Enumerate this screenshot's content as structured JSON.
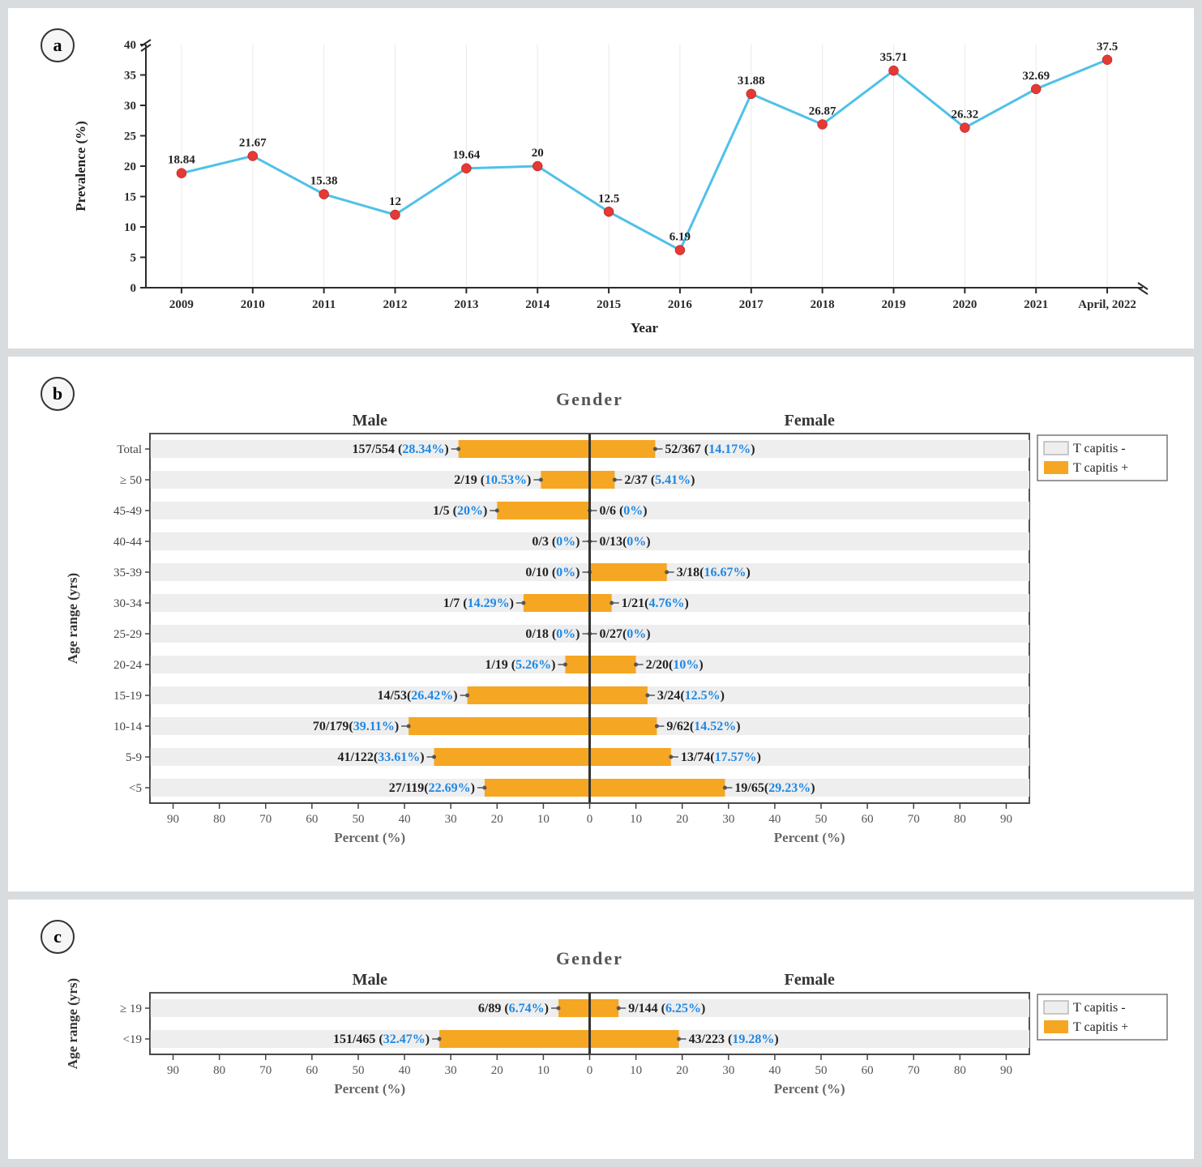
{
  "panel_a": {
    "badge": "a",
    "type": "line",
    "ylabel": "Prevalence (%)",
    "xlabel": "Year",
    "ylim": [
      0,
      40
    ],
    "ytick_step": 5,
    "categories": [
      "2009",
      "2010",
      "2011",
      "2012",
      "2013",
      "2014",
      "2015",
      "2016",
      "2017",
      "2018",
      "2019",
      "2020",
      "2021",
      "April, 2022"
    ],
    "values": [
      18.84,
      21.67,
      15.38,
      12,
      19.64,
      20,
      12.5,
      6.19,
      31.88,
      26.87,
      35.71,
      26.32,
      32.69,
      37.5
    ],
    "line_color": "#4fc1e9",
    "line_width": 3,
    "marker_color": "#e53935",
    "marker_size": 6,
    "grid_color": "#e9e9e9",
    "axis_color": "#2b2b2b",
    "label_fontsize": 17,
    "tick_fontsize": 15,
    "datalabel_fontsize": 15,
    "background_color": "#ffffff"
  },
  "panel_b": {
    "badge": "b",
    "type": "diverging-bar",
    "title": "Gender",
    "left_label": "Male",
    "right_label": "Female",
    "ylabel": "Age range (yrs)",
    "xlabel_left": "Percent (%)",
    "xlabel_right": "Percent (%)",
    "xlim": 95,
    "xtick_step": 10,
    "bar_height": 0.58,
    "bar_color": "#f5a623",
    "row_bg_color": "#eeeeee",
    "border_color": "#555555",
    "center_line_color": "#333333",
    "axis_color": "#444444",
    "text_color": "#222222",
    "pct_color": "#1e88e5",
    "tick_fontsize": 15,
    "label_fontsize": 17,
    "rows": [
      {
        "label": "Total",
        "male_pct": 28.34,
        "male_txt": "157/554 (",
        "male_p": "28.34%",
        "male_txt2": ")",
        "female_pct": 14.17,
        "female_txt": "52/367 (",
        "female_p": "14.17%",
        "female_txt2": ")"
      },
      {
        "label": "≥ 50",
        "male_pct": 10.53,
        "male_txt": "2/19 (",
        "male_p": "10.53%",
        "male_txt2": ")",
        "female_pct": 5.41,
        "female_txt": "2/37 (",
        "female_p": "5.41%",
        "female_txt2": ")"
      },
      {
        "label": "45-49",
        "male_pct": 20,
        "male_txt": "1/5 (",
        "male_p": "20%",
        "male_txt2": ")",
        "female_pct": 0,
        "female_txt": "0/6 (",
        "female_p": "0%",
        "female_txt2": ")"
      },
      {
        "label": "40-44",
        "male_pct": 0,
        "male_txt": "0/3 (",
        "male_p": "0%",
        "male_txt2": ")",
        "female_pct": 0,
        "female_txt": "0/13(",
        "female_p": "0%",
        "female_txt2": ")"
      },
      {
        "label": "35-39",
        "male_pct": 0,
        "male_txt": "0/10 (",
        "male_p": "0%",
        "male_txt2": ")",
        "female_pct": 16.67,
        "female_txt": "3/18(",
        "female_p": "16.67%",
        "female_txt2": ")"
      },
      {
        "label": "30-34",
        "male_pct": 14.29,
        "male_txt": "1/7 (",
        "male_p": "14.29%",
        "male_txt2": ")",
        "female_pct": 4.76,
        "female_txt": "1/21(",
        "female_p": "4.76%",
        "female_txt2": ")"
      },
      {
        "label": "25-29",
        "male_pct": 0,
        "male_txt": "0/18 (",
        "male_p": "0%",
        "male_txt2": ")",
        "female_pct": 0,
        "female_txt": "0/27(",
        "female_p": "0%",
        "female_txt2": ")"
      },
      {
        "label": "20-24",
        "male_pct": 5.26,
        "male_txt": "1/19 (",
        "male_p": "5.26%",
        "male_txt2": ")",
        "female_pct": 10,
        "female_txt": "2/20(",
        "female_p": "10%",
        "female_txt2": ")"
      },
      {
        "label": "15-19",
        "male_pct": 26.42,
        "male_txt": "14/53(",
        "male_p": "26.42%",
        "male_txt2": ")",
        "female_pct": 12.5,
        "female_txt": "3/24(",
        "female_p": "12.5%",
        "female_txt2": ")"
      },
      {
        "label": "10-14",
        "male_pct": 39.11,
        "male_txt": "70/179(",
        "male_p": "39.11%",
        "male_txt2": ")",
        "female_pct": 14.52,
        "female_txt": "9/62(",
        "female_p": "14.52%",
        "female_txt2": ")"
      },
      {
        "label": "5-9",
        "male_pct": 33.61,
        "male_txt": "41/122(",
        "male_p": "33.61%",
        "male_txt2": ")",
        "female_pct": 17.57,
        "female_txt": "13/74(",
        "female_p": "17.57%",
        "female_txt2": ")"
      },
      {
        "label": "<5",
        "male_pct": 22.69,
        "male_txt": "27/119(",
        "male_p": "22.69%",
        "male_txt2": ")",
        "female_pct": 29.23,
        "female_txt": "19/65(",
        "female_p": "29.23%",
        "female_txt2": ")"
      }
    ],
    "legend": {
      "neg_label": "T capitis -",
      "pos_label": "T capitis +",
      "neg_color": "#eeeeee",
      "pos_color": "#f5a623",
      "border_color": "#777777",
      "fontsize": 16
    }
  },
  "panel_c": {
    "badge": "c",
    "type": "diverging-bar",
    "title": "Gender",
    "left_label": "Male",
    "right_label": "Female",
    "ylabel": "Age range (yrs)",
    "xlabel_left": "Percent (%)",
    "xlabel_right": "Percent (%)",
    "xlim": 95,
    "xtick_step": 10,
    "bar_height": 0.58,
    "bar_color": "#f5a623",
    "row_bg_color": "#eeeeee",
    "border_color": "#555555",
    "center_line_color": "#333333",
    "axis_color": "#444444",
    "text_color": "#222222",
    "pct_color": "#1e88e5",
    "tick_fontsize": 15,
    "label_fontsize": 17,
    "rows": [
      {
        "label": "≥ 19",
        "male_pct": 6.74,
        "male_txt": "6/89 (",
        "male_p": "6.74%",
        "male_txt2": ")",
        "female_pct": 6.25,
        "female_txt": "9/144 (",
        "female_p": "6.25%",
        "female_txt2": ")"
      },
      {
        "label": "<19",
        "male_pct": 32.47,
        "male_txt": "151/465 (",
        "male_p": "32.47%",
        "male_txt2": ")",
        "female_pct": 19.28,
        "female_txt": "43/223 (",
        "female_p": "19.28%",
        "female_txt2": ")"
      }
    ],
    "legend": {
      "neg_label": "T capitis -",
      "pos_label": "T capitis +",
      "neg_color": "#eeeeee",
      "pos_color": "#f5a623",
      "border_color": "#777777",
      "fontsize": 16
    }
  }
}
